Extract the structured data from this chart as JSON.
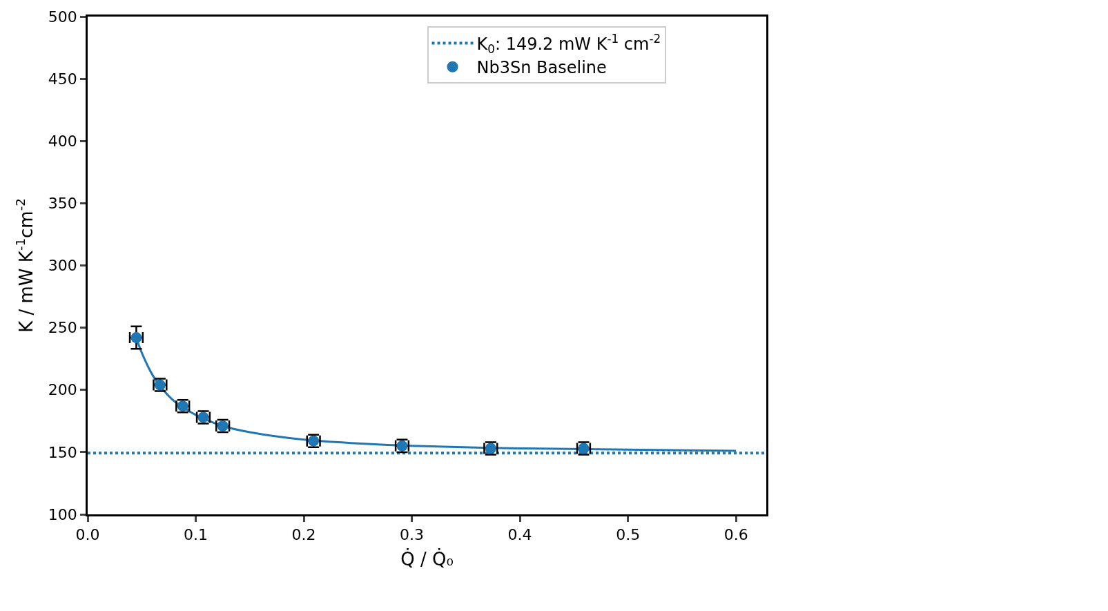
{
  "chart_data": {
    "type": "scatter",
    "xlabel": "Q̇ / Q̇₀",
    "ylabel": "K / mW K$^{-1}$cm$^{-2}$",
    "xlim": [
      0,
      0.628
    ],
    "xticks": [
      {
        "value": 0,
        "label": "0.0"
      },
      0.1,
      0.2,
      0.3,
      0.4,
      0.5,
      0.6
    ],
    "ylim": [
      100,
      500
    ],
    "yticks": [
      100,
      150,
      200,
      250,
      300,
      350,
      400,
      450,
      500
    ],
    "legend": "top right",
    "marker": "circle",
    "series": [
      {
        "name": "Nb3Sn Baseline",
        "color": "#1f77b4",
        "x": [
          0.045,
          0.067,
          0.088,
          0.107,
          0.125,
          0.209,
          0.291,
          0.373,
          0.459
        ],
        "values": [
          242,
          204,
          187,
          178,
          171,
          159,
          155,
          153,
          153
        ],
        "errors": [
          9,
          5,
          5,
          5,
          5,
          5,
          5,
          5,
          5
        ],
        "xerrors": [
          0.006,
          0.006,
          0.006,
          0.006,
          0.006,
          0.006,
          0.006,
          0.006,
          0.006
        ]
      },
      {
        "type": "line",
        "marker": "none",
        "color": "#1f77b4",
        "x": [
          0.045,
          0.05,
          0.06,
          0.07,
          0.08,
          0.09,
          0.1,
          0.125,
          0.15,
          0.2,
          0.25,
          0.3,
          0.4,
          0.5,
          0.6
        ],
        "values": [
          242,
          230,
          212,
          200,
          191,
          185,
          180,
          171,
          166,
          160,
          157,
          155,
          153,
          152,
          151
        ]
      }
    ],
    "ref_lines": [
      {
        "axis": "y",
        "value": 149.2,
        "label": "K$_{0}$: 149.2 mW K$^{-1}$ cm$^{-2}$",
        "color": "#1f77b4",
        "line_style": "dotted"
      }
    ]
  }
}
